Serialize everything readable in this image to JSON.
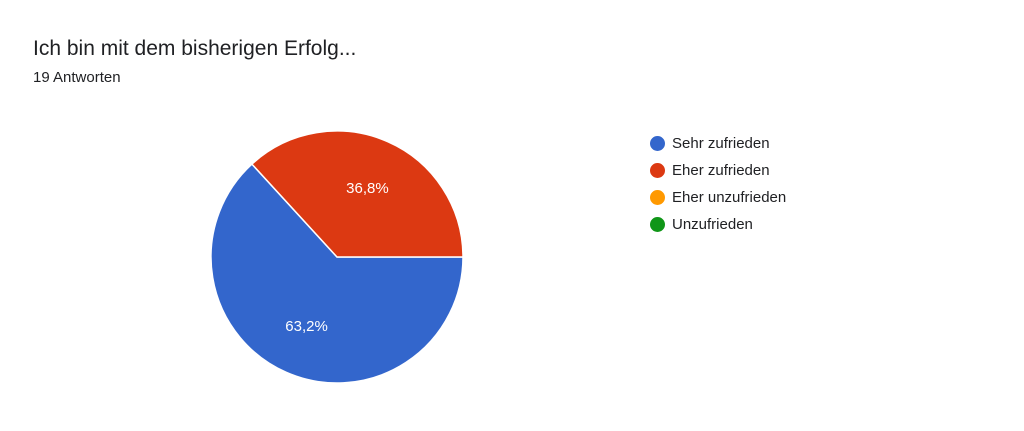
{
  "chart_data": {
    "type": "pie",
    "title": "Ich bin mit dem bisherigen Erfolg...",
    "subtitle": "19 Antworten",
    "legend_position": "right",
    "slices": [
      {
        "label": "Sehr zufrieden",
        "value": 63.2,
        "display": "63,2%",
        "color": "#3366cc"
      },
      {
        "label": "Eher zufrieden",
        "value": 36.8,
        "display": "36,8%",
        "color": "#dc3912"
      },
      {
        "label": "Eher unzufrieden",
        "value": 0,
        "display": "",
        "color": "#ff9900"
      },
      {
        "label": "Unzufrieden",
        "value": 0,
        "display": "",
        "color": "#109618"
      }
    ]
  }
}
